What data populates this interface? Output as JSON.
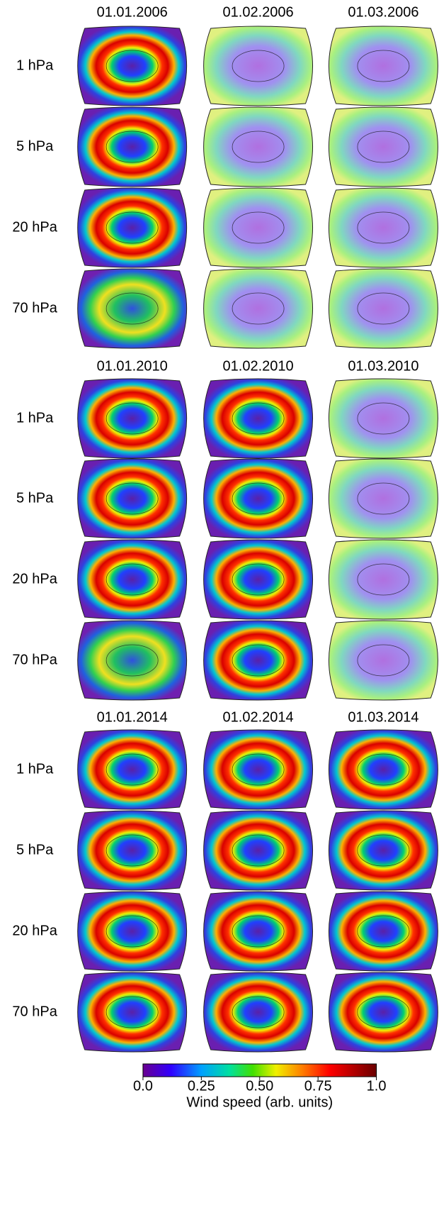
{
  "blocks": [
    {
      "dates": [
        "01.01.2006",
        "01.02.2006",
        "01.03.2006"
      ],
      "levels": [
        "1 hPa",
        "5 hPa",
        "20 hPa",
        "70 hPa"
      ]
    },
    {
      "dates": [
        "01.01.2010",
        "01.02.2010",
        "01.03.2010"
      ],
      "levels": [
        "1 hPa",
        "5 hPa",
        "20 hPa",
        "70 hPa"
      ]
    },
    {
      "dates": [
        "01.01.2014",
        "01.02.2014",
        "01.03.2014"
      ],
      "levels": [
        "1 hPa",
        "5 hPa",
        "20 hPa",
        "70 hPa"
      ]
    }
  ],
  "colorbar": {
    "range": [
      0,
      1
    ],
    "ticks": [
      {
        "value": 0,
        "label": "0.0"
      },
      0.25,
      {
        "value": 0.5,
        "label": "0.50"
      },
      0.75,
      {
        "value": 1,
        "label": "1.0"
      }
    ],
    "label": "Wind speed (arb. units)"
  }
}
